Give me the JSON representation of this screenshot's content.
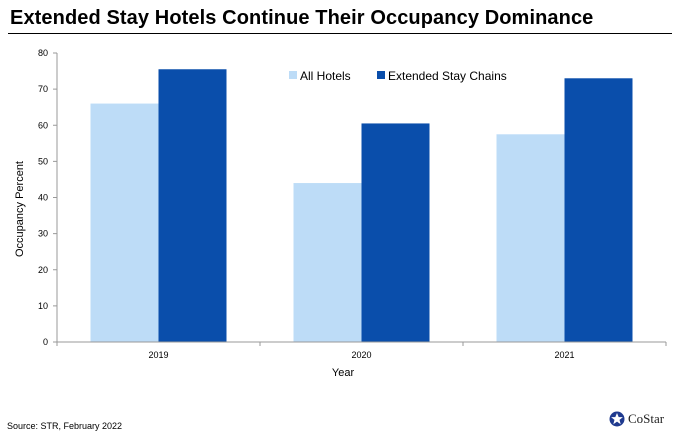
{
  "title": "Extended Stay Hotels Continue Their Occupancy Dominance",
  "source": "Source: STR, February 2022",
  "logo": {
    "text": "CoStar",
    "icon": "costar-star-icon",
    "color": "#1f3a8f"
  },
  "colors": {
    "all_hotels": "#bddcf7",
    "extended_stay": "#0a4eab",
    "axis": "#999999"
  },
  "chart_data": {
    "type": "bar",
    "categories": [
      "2019",
      "2020",
      "2021"
    ],
    "series": [
      {
        "name": "All Hotels",
        "values": [
          66,
          44,
          57.5
        ]
      },
      {
        "name": "Extended Stay Chains",
        "values": [
          75.5,
          60.5,
          73
        ]
      }
    ],
    "xlabel": "Year",
    "ylabel": "Occupancy Percent",
    "ylim": [
      0,
      80
    ],
    "yticks": [
      "0",
      "10",
      "20",
      "30",
      "40",
      "50",
      "60",
      "70",
      "80"
    ],
    "grid": false,
    "legend": "top-center"
  }
}
